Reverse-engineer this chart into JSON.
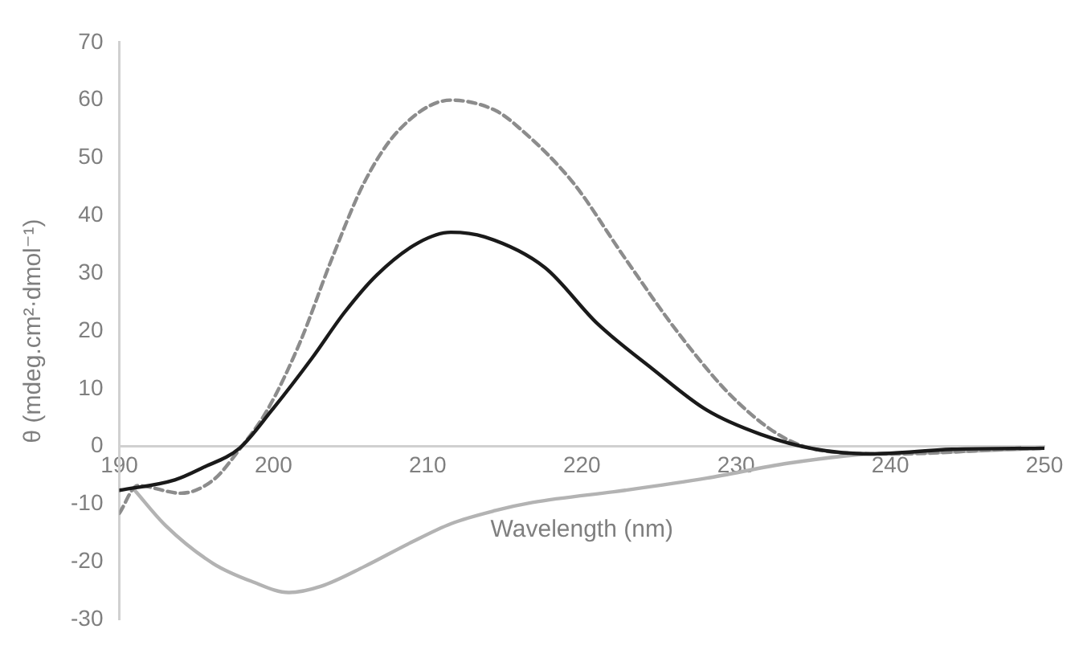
{
  "chart_data": {
    "type": "line",
    "xlabel": "Wavelength (nm)",
    "ylabel": "θ (mdeg.cm²·dmol⁻¹)",
    "xlim": [
      190,
      250
    ],
    "xticks": [
      190,
      200,
      210,
      220,
      230,
      240,
      250
    ],
    "ylim": [
      -30,
      70
    ],
    "yticks": [
      -30,
      -20,
      -10,
      0,
      10,
      20,
      30,
      40,
      50,
      60,
      70
    ],
    "grid": false,
    "legend": false,
    "marker": "none",
    "series": [
      {
        "color": "#1a1a1a",
        "line_style": "solid",
        "x": [
          190,
          193.6,
          195.4,
          197.8,
          199.9,
          202.5,
          204.6,
          206.7,
          209.4,
          211.5,
          213.7,
          217.6,
          221,
          224.6,
          228.1,
          231.6,
          235.2,
          238.7,
          244,
          250
        ],
        "values": [
          -7.6,
          -5.8,
          -3.7,
          -0.3,
          6.3,
          15.3,
          23.2,
          29.7,
          35.3,
          37.1,
          36.3,
          31,
          21.3,
          13.4,
          6.3,
          2.1,
          -0.5,
          -1.3,
          -0.5,
          -0.3
        ]
      },
      {
        "color": "#8c8c8c",
        "line_style": "dashed",
        "x": [
          190,
          191.2,
          194,
          196.1,
          197.8,
          199.6,
          201.7,
          203.8,
          205.9,
          208.1,
          211.5,
          214.4,
          215.8,
          219.4,
          222.8,
          226.3,
          229.9,
          233.4,
          236.9,
          240.5,
          247.4,
          250
        ],
        "values": [
          -11.6,
          -6.8,
          -8.1,
          -5.8,
          -0.5,
          6.3,
          17.9,
          32.6,
          45.8,
          54.7,
          60,
          58.2,
          55.5,
          45.8,
          32.6,
          19.5,
          8.2,
          1.1,
          -1.1,
          -1.3,
          -0.5,
          -0.3
        ]
      },
      {
        "color": "#b3b3b3",
        "line_style": "solid",
        "x": [
          191,
          193,
          196.1,
          198.6,
          201,
          203.1,
          205.9,
          208.8,
          211.5,
          214.4,
          216.8,
          222.8,
          228.1,
          233.4,
          238.7,
          242.2,
          250
        ],
        "values": [
          -7.6,
          -13.7,
          -20.3,
          -23.4,
          -25.3,
          -24.2,
          -20.8,
          -16.8,
          -13.4,
          -11.1,
          -9.7,
          -7.6,
          -5.5,
          -2.9,
          -1.3,
          -1.1,
          -0.3
        ]
      }
    ]
  }
}
